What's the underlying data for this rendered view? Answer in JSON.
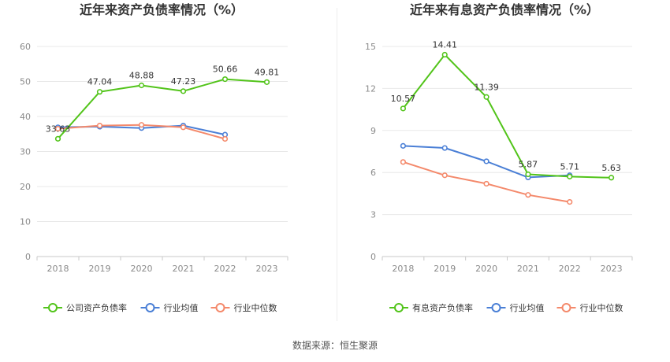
{
  "footer": {
    "source": "数据来源：恒生聚源"
  },
  "colors": {
    "primary": "#52c41a",
    "avg": "#4a7fd6",
    "median": "#f4896b",
    "grid": "#e8e8e8",
    "axis": "#c8c8c8"
  },
  "chart_data": [
    {
      "type": "line",
      "title": "近年来资产负债率情况（%）",
      "xlabel": "",
      "ylabel": "",
      "x": [
        "2018",
        "2019",
        "2020",
        "2021",
        "2022",
        "2023"
      ],
      "ylim": [
        0,
        60
      ],
      "yticks": [
        0,
        10,
        20,
        30,
        40,
        50,
        60
      ],
      "grid": true,
      "legend": "bottom",
      "series": [
        {
          "name": "公司资产负债率",
          "color": "#52c41a",
          "values": [
            33.63,
            47.04,
            48.88,
            47.23,
            50.66,
            49.81
          ],
          "labels": [
            "33.63",
            "47.04",
            "48.88",
            "47.23",
            "50.66",
            "49.81"
          ]
        },
        {
          "name": "行业均值",
          "color": "#4a7fd6",
          "values": [
            36.9,
            37.1,
            36.7,
            37.4,
            34.8,
            null
          ]
        },
        {
          "name": "行业中位数",
          "color": "#f4896b",
          "values": [
            36.5,
            37.4,
            37.6,
            36.9,
            33.6,
            null
          ]
        }
      ]
    },
    {
      "type": "line",
      "title": "近年来有息资产负债率情况（%）",
      "xlabel": "",
      "ylabel": "",
      "x": [
        "2018",
        "2019",
        "2020",
        "2021",
        "2022",
        "2023"
      ],
      "ylim": [
        0,
        15
      ],
      "yticks": [
        0,
        3,
        6,
        9,
        12,
        15
      ],
      "grid": true,
      "legend": "bottom",
      "series": [
        {
          "name": "有息资产负债率",
          "color": "#52c41a",
          "values": [
            10.57,
            14.41,
            11.39,
            5.87,
            5.71,
            5.63
          ],
          "labels": [
            "10.57",
            "14.41",
            "11.39",
            "5.87",
            "5.71",
            "5.63"
          ]
        },
        {
          "name": "行业均值",
          "color": "#4a7fd6",
          "values": [
            7.9,
            7.75,
            6.8,
            5.65,
            5.8,
            null
          ]
        },
        {
          "name": "行业中位数",
          "color": "#f4896b",
          "values": [
            6.75,
            5.8,
            5.2,
            4.4,
            3.9,
            null
          ]
        }
      ]
    }
  ]
}
